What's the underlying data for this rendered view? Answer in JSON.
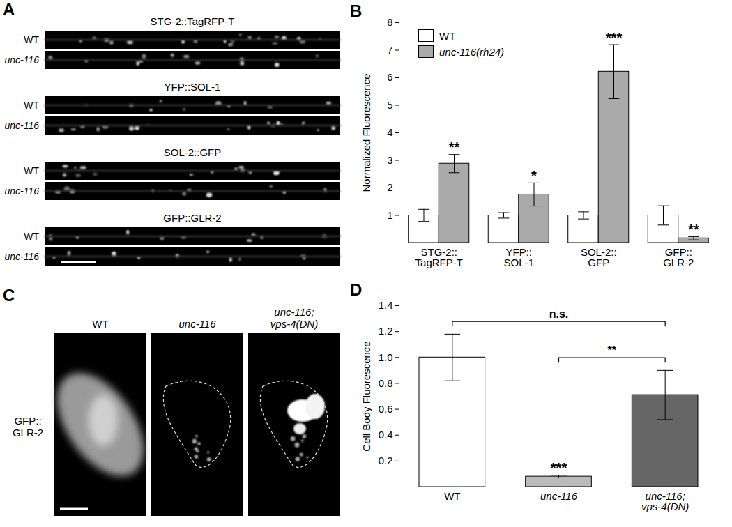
{
  "figure": {
    "A": {
      "panel": "A",
      "rows": [
        {
          "title": "STG-2::TagRFP-T",
          "labels": [
            "WT",
            "unc-116"
          ]
        },
        {
          "title": "YFP::SOL-1",
          "labels": [
            "WT",
            "unc-116"
          ]
        },
        {
          "title": "SOL-2::GFP",
          "labels": [
            "WT",
            "unc-116"
          ]
        },
        {
          "title": "GFP::GLR-2",
          "labels": [
            "WT",
            "unc-116"
          ]
        }
      ]
    },
    "C": {
      "panel": "C",
      "row_label": "GFP::\nGLR-2",
      "labels": [
        "WT",
        "unc-116",
        "unc-116;\nvps-4(DN)"
      ]
    }
  },
  "chart_data": [
    {
      "panel": "B",
      "type": "bar",
      "categories": [
        "STG-2::\nTagRFP-T",
        "YFP::\nSOL-1",
        "SOL-2::\nGFP",
        "GFP::\nGLR-2"
      ],
      "series": [
        {
          "name": "WT",
          "color": "#ffffff",
          "values": [
            1,
            1,
            1,
            1
          ],
          "errors": [
            0.22,
            0.1,
            0.13,
            0.35
          ]
        },
        {
          "name": "unc-116(rh24)",
          "color": "#aaaaaa",
          "values": [
            2.88,
            1.76,
            6.22,
            0.17
          ],
          "errors": [
            0.33,
            0.42,
            0.98,
            0.06
          ],
          "annotations": [
            "**",
            "*",
            "***",
            "**"
          ]
        }
      ],
      "y_label": "Normalized Fluorescence",
      "ylim": [
        0,
        8
      ],
      "yticks": [
        1,
        2,
        3,
        4,
        5,
        6,
        7,
        8
      ],
      "legend": "top-left"
    },
    {
      "panel": "D",
      "type": "bar",
      "categories": [
        "WT",
        "unc-116",
        "unc-116;\nvps-4(DN)"
      ],
      "values": [
        1.0,
        0.08,
        0.71
      ],
      "errors": [
        0.18,
        0.01,
        0.19
      ],
      "colors": [
        "#ffffff",
        "#bbbbbb",
        "#666666"
      ],
      "y_label": "Cell Body Fluorescence",
      "ylim": [
        0,
        1.4
      ],
      "yticks": [
        0.2,
        0.4,
        0.6,
        0.8,
        {
          "value": 1,
          "label": "1.0"
        },
        1.2,
        1.4
      ],
      "annotations": [
        {
          "category": "unc-116",
          "text": "***"
        }
      ],
      "brackets": [
        {
          "from": "WT",
          "to": "unc-116;\nvps-4(DN)",
          "text": "n.s."
        },
        {
          "from": "unc-116",
          "to": "unc-116;\nvps-4(DN)",
          "text": "**"
        }
      ]
    }
  ]
}
